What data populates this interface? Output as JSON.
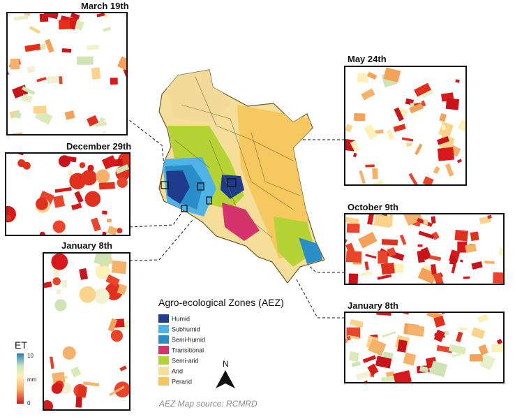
{
  "map": {
    "title": "Agro-ecological Zones (AEZ)",
    "source": "AEZ Map source: RCMRD",
    "north_label": "N",
    "legend": [
      {
        "label": "Humid",
        "color": "#1f3b8c"
      },
      {
        "label": "Subhumid",
        "color": "#4fb3e6"
      },
      {
        "label": "Semi-humid",
        "color": "#2a8fc9"
      },
      {
        "label": "Transitional",
        "color": "#d6336c"
      },
      {
        "label": "Semi-arid",
        "color": "#b5d334"
      },
      {
        "label": "Arid",
        "color": "#f5dd9a"
      },
      {
        "label": "Perarid",
        "color": "#f6c65a"
      }
    ]
  },
  "et_scale": {
    "label": "ET",
    "max": "10",
    "unit": "mm",
    "min": "0",
    "colors": [
      "#d7191c",
      "#f6b26b",
      "#fdf1b8",
      "#c9e6c0",
      "#2c7bb6"
    ]
  },
  "panels": [
    {
      "title": "March 19th",
      "scene": "mixed"
    },
    {
      "title": "December 29th",
      "scene": "circles"
    },
    {
      "title": "January 8th",
      "scene": "circles-tall"
    },
    {
      "title": "May 24th",
      "scene": "speckled"
    },
    {
      "title": "October 9th",
      "scene": "dense-red"
    },
    {
      "title": "January 8th",
      "scene": "mixed-red"
    }
  ]
}
